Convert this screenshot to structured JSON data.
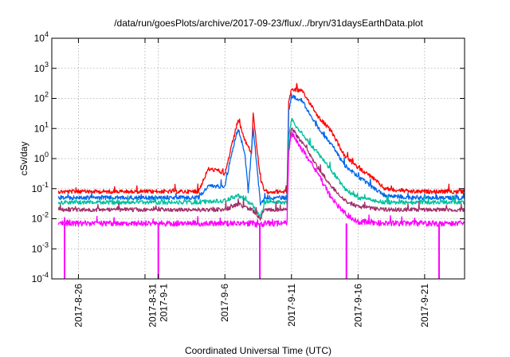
{
  "chart_data": {
    "type": "line",
    "title": "/data/run/goesPlots/archive/2017-09-23/flux/../bryn/31daysEarthData.plot",
    "xlabel": "Coordinated Universal Time (UTC)",
    "ylabel": "cSv/day",
    "yscale": "log",
    "ylim": [
      0.0001,
      10000
    ],
    "xlim": [
      "2017-08-24",
      "2017-09-24"
    ],
    "grid": true,
    "y_ticks": [
      {
        "base": "10",
        "exp": "-4",
        "value": 0.0001
      },
      {
        "base": "10",
        "exp": "-3",
        "value": 0.001
      },
      {
        "base": "10",
        "exp": "-2",
        "value": 0.01
      },
      {
        "base": "10",
        "exp": "-1",
        "value": 0.1
      },
      {
        "base": "10",
        "exp": "0",
        "value": 1
      },
      {
        "base": "10",
        "exp": "1",
        "value": 10
      },
      {
        "base": "10",
        "exp": "2",
        "value": 100
      },
      {
        "base": "10",
        "exp": "3",
        "value": 1000
      },
      {
        "base": "10",
        "exp": "4",
        "value": 10000
      }
    ],
    "x_tick_dates": [
      "2017-08-26",
      "2017-08-31",
      "2017-09-01",
      "2017-09-06",
      "2017-09-11",
      "2017-09-16",
      "2017-09-21"
    ],
    "x_tick_labels": [
      {
        "date": "2017-08-26",
        "lines": [
          "2017-8-26"
        ]
      },
      {
        "date": "2017-09-01",
        "lines": [
          "2017-8-31",
          "2017-9-1"
        ]
      },
      {
        "date": "2017-09-06",
        "lines": [
          "2017-9-6"
        ]
      },
      {
        "date": "2017-09-11",
        "lines": [
          "2017-9-11"
        ]
      },
      {
        "date": "2017-09-16",
        "lines": [
          "2017-9-16"
        ]
      },
      {
        "date": "2017-09-21",
        "lines": [
          "2017-9-21"
        ]
      }
    ],
    "series": [
      {
        "color": "#ff0000",
        "points": [
          [
            "2017-08-24T12:00",
            0.08
          ],
          [
            "2017-08-27",
            0.08
          ],
          [
            "2017-08-30",
            0.08
          ],
          [
            "2017-09-02",
            0.08
          ],
          [
            "2017-09-04",
            0.08
          ],
          [
            "2017-09-04T18:00",
            0.45
          ],
          [
            "2017-09-05T12:00",
            0.4
          ],
          [
            "2017-09-06",
            0.3
          ],
          [
            "2017-09-06T12:00",
            2.5
          ],
          [
            "2017-09-07",
            20
          ],
          [
            "2017-09-07T12:00",
            4
          ],
          [
            "2017-09-08",
            1.5
          ],
          [
            "2017-09-08T03:00",
            30
          ],
          [
            "2017-09-08T10:00",
            2
          ],
          [
            "2017-09-08T16:00",
            0.2
          ],
          [
            "2017-09-09",
            0.08
          ],
          [
            "2017-09-10",
            0.08
          ],
          [
            "2017-09-10T16:00",
            0.08
          ],
          [
            "2017-09-10T19:00",
            80
          ],
          [
            "2017-09-11",
            200
          ],
          [
            "2017-09-11T18:00",
            180
          ],
          [
            "2017-09-12T12:00",
            60
          ],
          [
            "2017-09-13",
            25
          ],
          [
            "2017-09-14",
            8
          ],
          [
            "2017-09-15",
            1.2
          ],
          [
            "2017-09-16",
            0.5
          ],
          [
            "2017-09-17",
            0.25
          ],
          [
            "2017-09-18",
            0.1
          ],
          [
            "2017-09-20",
            0.08
          ],
          [
            "2017-09-22",
            0.08
          ],
          [
            "2017-09-24",
            0.08
          ]
        ]
      },
      {
        "color": "#0066ee",
        "points": [
          [
            "2017-08-24T12:00",
            0.05
          ],
          [
            "2017-08-27",
            0.05
          ],
          [
            "2017-08-30",
            0.05
          ],
          [
            "2017-09-02",
            0.05
          ],
          [
            "2017-09-04",
            0.05
          ],
          [
            "2017-09-04T18:00",
            0.12
          ],
          [
            "2017-09-06",
            0.12
          ],
          [
            "2017-09-06T12:00",
            1.5
          ],
          [
            "2017-09-07",
            10
          ],
          [
            "2017-09-07T12:00",
            1.5
          ],
          [
            "2017-09-07T18:00",
            0.08
          ],
          [
            "2017-09-08T03:00",
            10
          ],
          [
            "2017-09-08T10:00",
            0.5
          ],
          [
            "2017-09-08T16:00",
            0.03
          ],
          [
            "2017-09-09",
            0.05
          ],
          [
            "2017-09-10",
            0.05
          ],
          [
            "2017-09-10T16:00",
            0.05
          ],
          [
            "2017-09-10T19:00",
            40
          ],
          [
            "2017-09-11",
            120
          ],
          [
            "2017-09-11T18:00",
            90
          ],
          [
            "2017-09-12T12:00",
            25
          ],
          [
            "2017-09-13",
            10
          ],
          [
            "2017-09-14",
            3
          ],
          [
            "2017-09-15",
            0.6
          ],
          [
            "2017-09-16",
            0.25
          ],
          [
            "2017-09-17",
            0.12
          ],
          [
            "2017-09-18",
            0.06
          ],
          [
            "2017-09-20",
            0.05
          ],
          [
            "2017-09-22",
            0.05
          ],
          [
            "2017-09-24",
            0.05
          ]
        ]
      },
      {
        "color": "#00c0a0",
        "points": [
          [
            "2017-08-24T12:00",
            0.035
          ],
          [
            "2017-08-27",
            0.035
          ],
          [
            "2017-08-30",
            0.035
          ],
          [
            "2017-09-02",
            0.035
          ],
          [
            "2017-09-04",
            0.035
          ],
          [
            "2017-09-06",
            0.04
          ],
          [
            "2017-09-06T12:00",
            0.05
          ],
          [
            "2017-09-07",
            0.06
          ],
          [
            "2017-09-08",
            0.03
          ],
          [
            "2017-09-08T16:00",
            0.012
          ],
          [
            "2017-09-09",
            0.035
          ],
          [
            "2017-09-10",
            0.035
          ],
          [
            "2017-09-10T16:00",
            0.035
          ],
          [
            "2017-09-10T19:00",
            5
          ],
          [
            "2017-09-11",
            20
          ],
          [
            "2017-09-12",
            5
          ],
          [
            "2017-09-13",
            1.5
          ],
          [
            "2017-09-14",
            0.4
          ],
          [
            "2017-09-15",
            0.1
          ],
          [
            "2017-09-16",
            0.05
          ],
          [
            "2017-09-18",
            0.035
          ],
          [
            "2017-09-20",
            0.035
          ],
          [
            "2017-09-22",
            0.035
          ],
          [
            "2017-09-24",
            0.035
          ]
        ]
      },
      {
        "color": "#a0306a",
        "points": [
          [
            "2017-08-24T12:00",
            0.02
          ],
          [
            "2017-08-27",
            0.02
          ],
          [
            "2017-08-30",
            0.02
          ],
          [
            "2017-09-02",
            0.02
          ],
          [
            "2017-09-04",
            0.02
          ],
          [
            "2017-09-06",
            0.02
          ],
          [
            "2017-09-07",
            0.03
          ],
          [
            "2017-09-08",
            0.02
          ],
          [
            "2017-09-08T16:00",
            0.01
          ],
          [
            "2017-09-09",
            0.02
          ],
          [
            "2017-09-10T16:00",
            0.02
          ],
          [
            "2017-09-10T19:00",
            2
          ],
          [
            "2017-09-11",
            10
          ],
          [
            "2017-09-12",
            2.5
          ],
          [
            "2017-09-13",
            0.5
          ],
          [
            "2017-09-14",
            0.12
          ],
          [
            "2017-09-15",
            0.04
          ],
          [
            "2017-09-16",
            0.025
          ],
          [
            "2017-09-18",
            0.02
          ],
          [
            "2017-09-20",
            0.02
          ],
          [
            "2017-09-22",
            0.02
          ],
          [
            "2017-09-24",
            0.02
          ]
        ]
      },
      {
        "color": "#ff00ff",
        "points": [
          [
            "2017-08-24T12:00",
            0.007
          ],
          [
            "2017-08-27",
            0.007
          ],
          [
            "2017-08-30",
            0.007
          ],
          [
            "2017-09-02",
            0.007
          ],
          [
            "2017-09-04",
            0.007
          ],
          [
            "2017-09-06",
            0.007
          ],
          [
            "2017-09-08",
            0.007
          ],
          [
            "2017-09-08T16:00",
            0.006
          ],
          [
            "2017-09-09",
            0.007
          ],
          [
            "2017-09-10T16:00",
            0.007
          ],
          [
            "2017-09-10T19:00",
            1.5
          ],
          [
            "2017-09-11",
            7
          ],
          [
            "2017-09-12",
            1.5
          ],
          [
            "2017-09-13",
            0.3
          ],
          [
            "2017-09-14",
            0.05
          ],
          [
            "2017-09-15",
            0.015
          ],
          [
            "2017-09-16",
            0.008
          ],
          [
            "2017-09-18",
            0.007
          ],
          [
            "2017-09-20",
            0.007
          ],
          [
            "2017-09-22",
            0.007
          ],
          [
            "2017-09-24",
            0.007
          ]
        ]
      }
    ],
    "annotations": {
      "dropout_dates": [
        "2017-08-24T23:00",
        "2017-09-01T00:00",
        "2017-09-08T15:00",
        "2017-09-15T03:00",
        "2017-09-22T02:00"
      ],
      "dropout_color": "#ff00ff"
    }
  }
}
